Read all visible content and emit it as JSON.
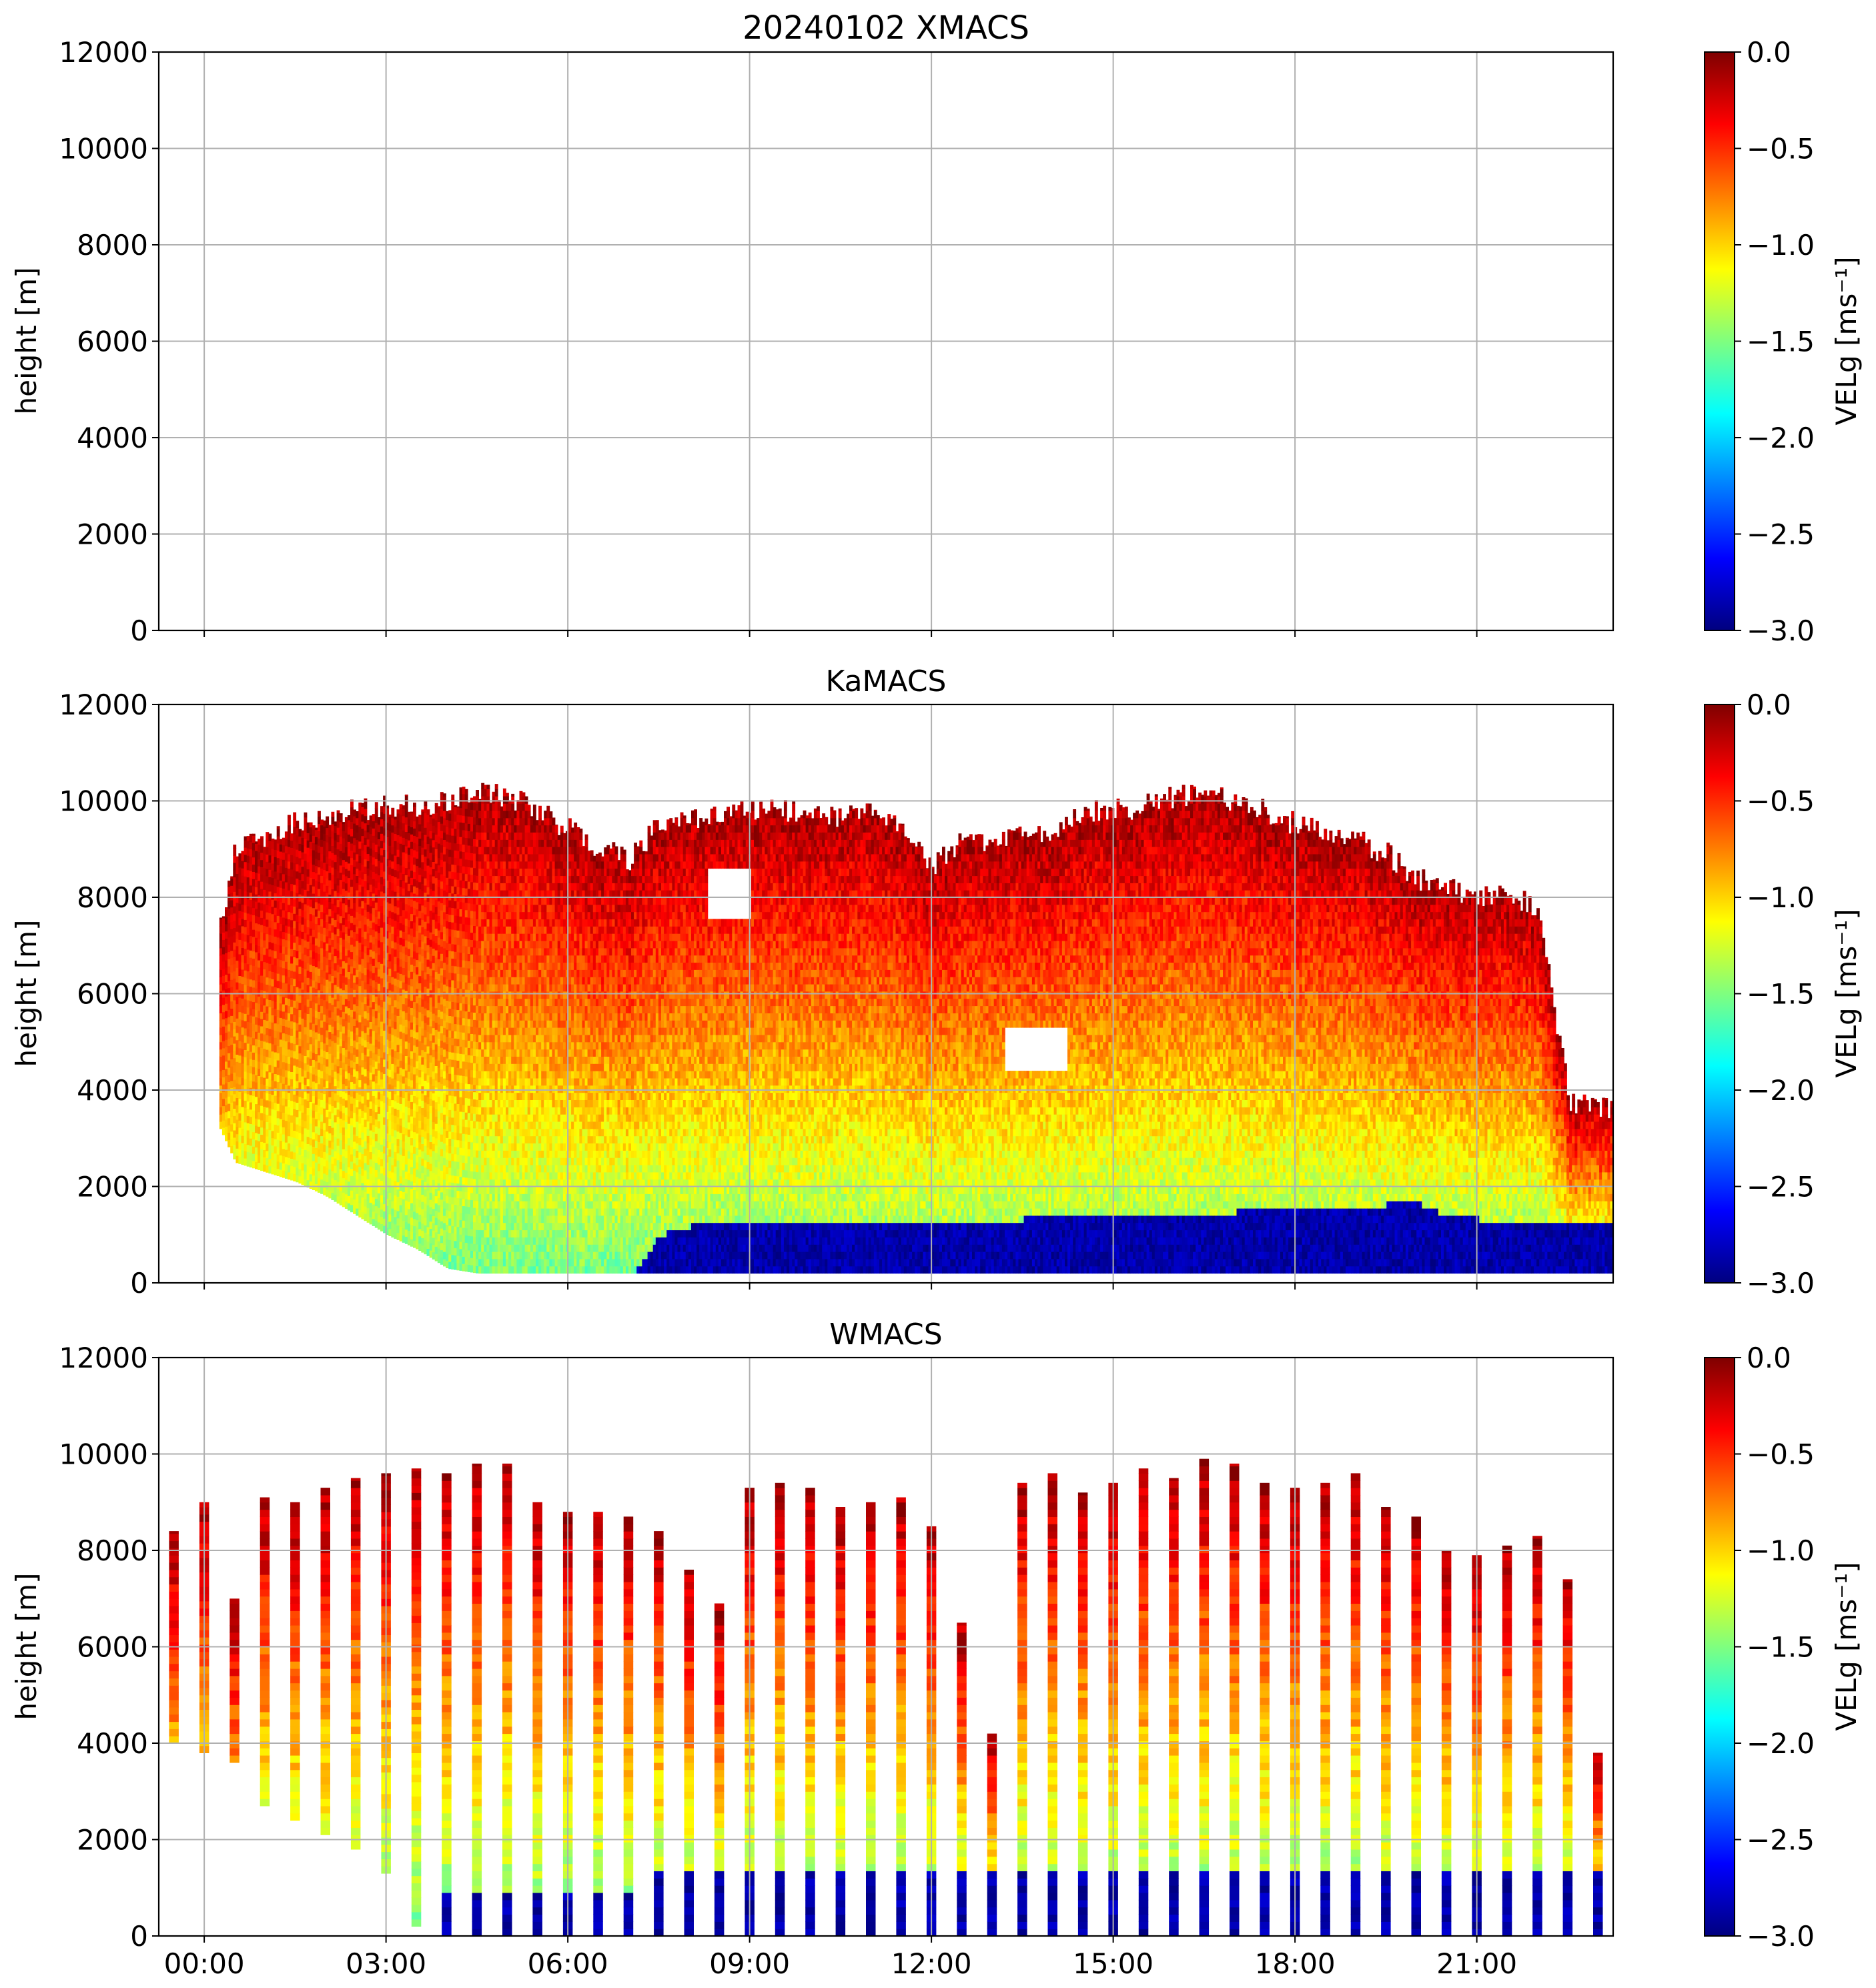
{
  "chart_data": [
    {
      "type": "heatmap",
      "title": "20240102 XMACS",
      "xlabel": "",
      "ylabel": "height [m]",
      "ylim": [
        0,
        12000
      ],
      "yticks": [
        "0",
        "2000",
        "4000",
        "6000",
        "8000",
        "10000",
        "12000"
      ],
      "xticks": [
        "00:00",
        "03:00",
        "06:00",
        "09:00",
        "12:00",
        "15:00",
        "18:00",
        "21:00"
      ],
      "xrange_hours": [
        -0.75,
        23.25
      ],
      "grid": true,
      "colorbar": {
        "label": "VELg [ms⁻¹]",
        "min": -3.0,
        "max": 0.0,
        "ticks": [
          "0.0",
          "−0.5",
          "−1.0",
          "−1.5",
          "−2.0",
          "−2.5",
          "−3.0"
        ]
      },
      "observed": []
    },
    {
      "type": "heatmap",
      "title": "KaMACS",
      "xlabel": "",
      "ylabel": "height [m]",
      "ylim": [
        0,
        12000
      ],
      "yticks": [
        "0",
        "2000",
        "4000",
        "6000",
        "8000",
        "10000",
        "12000"
      ],
      "xticks": [
        "00:00",
        "03:00",
        "06:00",
        "09:00",
        "12:00",
        "15:00",
        "18:00",
        "21:00"
      ],
      "xrange_hours": [
        -0.75,
        23.25
      ],
      "grid": true,
      "colorbar": {
        "label": "VELg [ms⁻¹]",
        "min": -3.0,
        "max": 0.0,
        "ticks": [
          "0.0",
          "−0.5",
          "−1.0",
          "−1.5",
          "−2.0",
          "−2.5",
          "−3.0"
        ]
      },
      "profile": {
        "hours": [
          0.25,
          0.5,
          1.0,
          1.5,
          2.0,
          2.5,
          3.0,
          3.5,
          4.0,
          4.5,
          5.0,
          5.5,
          6.0,
          6.5,
          7.0,
          7.5,
          8.0,
          8.5,
          9.0,
          9.5,
          10.0,
          10.5,
          11.0,
          11.5,
          12.0,
          12.5,
          13.0,
          13.5,
          14.0,
          14.5,
          15.0,
          15.5,
          16.0,
          16.5,
          17.0,
          17.5,
          18.0,
          18.5,
          19.0,
          19.5,
          20.0,
          20.5,
          21.0,
          21.5,
          22.0,
          22.5,
          23.0
        ],
        "echo_top_m": [
          7500,
          9000,
          9300,
          9600,
          9700,
          9800,
          9900,
          9900,
          10000,
          10200,
          10100,
          9800,
          9400,
          9000,
          8800,
          9500,
          9600,
          9700,
          9800,
          9800,
          9700,
          9600,
          9800,
          9400,
          8600,
          9200,
          9100,
          9300,
          9300,
          9800,
          9800,
          9900,
          10100,
          10200,
          10000,
          9800,
          9500,
          9400,
          9200,
          8900,
          8400,
          8200,
          8000,
          8000,
          7800,
          3800,
          3600
        ],
        "echo_base_m": [
          3200,
          2500,
          2300,
          2100,
          1800,
          1400,
          1000,
          700,
          300,
          200,
          200,
          200,
          200,
          200,
          200,
          200,
          200,
          200,
          200,
          200,
          200,
          200,
          200,
          200,
          200,
          200,
          200,
          200,
          200,
          200,
          200,
          200,
          200,
          200,
          200,
          200,
          200,
          200,
          200,
          200,
          200,
          200,
          200,
          200,
          200,
          200,
          200
        ],
        "fast_fall_top_m": [
          0,
          0,
          0,
          0,
          0,
          0,
          0,
          0,
          0,
          0,
          0,
          0,
          0,
          0,
          0,
          900,
          1100,
          1150,
          1200,
          1200,
          1200,
          1200,
          1200,
          1200,
          1250,
          1250,
          1250,
          1250,
          1300,
          1300,
          1300,
          1300,
          1300,
          1350,
          1400,
          1450,
          1500,
          1550,
          1550,
          1550,
          1600,
          1300,
          1250,
          1250,
          1250,
          1200,
          1200
        ]
      }
    },
    {
      "type": "heatmap",
      "title": "WMACS",
      "xlabel": "",
      "ylabel": "height [m]",
      "ylim": [
        0,
        12000
      ],
      "yticks": [
        "0",
        "2000",
        "4000",
        "6000",
        "8000",
        "10000",
        "12000"
      ],
      "xticks": [
        "00:00",
        "03:00",
        "06:00",
        "09:00",
        "12:00",
        "15:00",
        "18:00",
        "21:00"
      ],
      "xrange_hours": [
        -0.75,
        23.25
      ],
      "grid": true,
      "colorbar": {
        "label": "VELg [ms⁻¹]",
        "min": -3.0,
        "max": 0.0,
        "ticks": [
          "0.0",
          "−0.5",
          "−1.0",
          "−1.5",
          "−2.0",
          "−2.5",
          "−3.0"
        ]
      },
      "strips": [
        {
          "h": -0.5,
          "top": 8400,
          "base": 4000
        },
        {
          "h": 0.0,
          "top": 9000,
          "base": 3800
        },
        {
          "h": 0.5,
          "top": 7000,
          "base": 3600
        },
        {
          "h": 1.0,
          "top": 9100,
          "base": 2700
        },
        {
          "h": 1.5,
          "top": 9000,
          "base": 2400
        },
        {
          "h": 2.0,
          "top": 9300,
          "base": 2100
        },
        {
          "h": 2.5,
          "top": 9500,
          "base": 1800
        },
        {
          "h": 3.0,
          "top": 9600,
          "base": 1300
        },
        {
          "h": 3.5,
          "top": 9700,
          "base": 200
        },
        {
          "h": 4.0,
          "top": 9600,
          "base": 0
        },
        {
          "h": 4.5,
          "top": 9800,
          "base": 0
        },
        {
          "h": 5.0,
          "top": 9800,
          "base": 0
        },
        {
          "h": 5.5,
          "top": 9000,
          "base": 0
        },
        {
          "h": 6.0,
          "top": 8800,
          "base": 0
        },
        {
          "h": 6.5,
          "top": 8800,
          "base": 0
        },
        {
          "h": 7.0,
          "top": 8700,
          "base": 0
        },
        {
          "h": 7.5,
          "top": 8400,
          "base": 0
        },
        {
          "h": 8.0,
          "top": 7600,
          "base": 0
        },
        {
          "h": 8.5,
          "top": 6900,
          "base": 0
        },
        {
          "h": 9.0,
          "top": 9300,
          "base": 0
        },
        {
          "h": 9.5,
          "top": 9400,
          "base": 0
        },
        {
          "h": 10.0,
          "top": 9300,
          "base": 0
        },
        {
          "h": 10.5,
          "top": 8900,
          "base": 0
        },
        {
          "h": 11.0,
          "top": 9000,
          "base": 0
        },
        {
          "h": 11.5,
          "top": 9100,
          "base": 0
        },
        {
          "h": 12.0,
          "top": 8500,
          "base": 0
        },
        {
          "h": 12.5,
          "top": 6500,
          "base": 0
        },
        {
          "h": 13.0,
          "top": 4200,
          "base": 0
        },
        {
          "h": 13.5,
          "top": 9400,
          "base": 0
        },
        {
          "h": 14.0,
          "top": 9600,
          "base": 0
        },
        {
          "h": 14.5,
          "top": 9200,
          "base": 0
        },
        {
          "h": 15.0,
          "top": 9400,
          "base": 0
        },
        {
          "h": 15.5,
          "top": 9700,
          "base": 0
        },
        {
          "h": 16.0,
          "top": 9500,
          "base": 0
        },
        {
          "h": 16.5,
          "top": 9900,
          "base": 0
        },
        {
          "h": 17.0,
          "top": 9800,
          "base": 0
        },
        {
          "h": 17.5,
          "top": 9400,
          "base": 0
        },
        {
          "h": 18.0,
          "top": 9300,
          "base": 0
        },
        {
          "h": 18.5,
          "top": 9400,
          "base": 0
        },
        {
          "h": 19.0,
          "top": 9600,
          "base": 0
        },
        {
          "h": 19.5,
          "top": 8900,
          "base": 0
        },
        {
          "h": 20.0,
          "top": 8700,
          "base": 0
        },
        {
          "h": 20.5,
          "top": 8000,
          "base": 0
        },
        {
          "h": 21.0,
          "top": 7900,
          "base": 0
        },
        {
          "h": 21.5,
          "top": 8100,
          "base": 0
        },
        {
          "h": 22.0,
          "top": 8300,
          "base": 0
        },
        {
          "h": 22.5,
          "top": 7400,
          "base": 0
        },
        {
          "h": 23.0,
          "top": 3800,
          "base": 0
        }
      ]
    }
  ]
}
